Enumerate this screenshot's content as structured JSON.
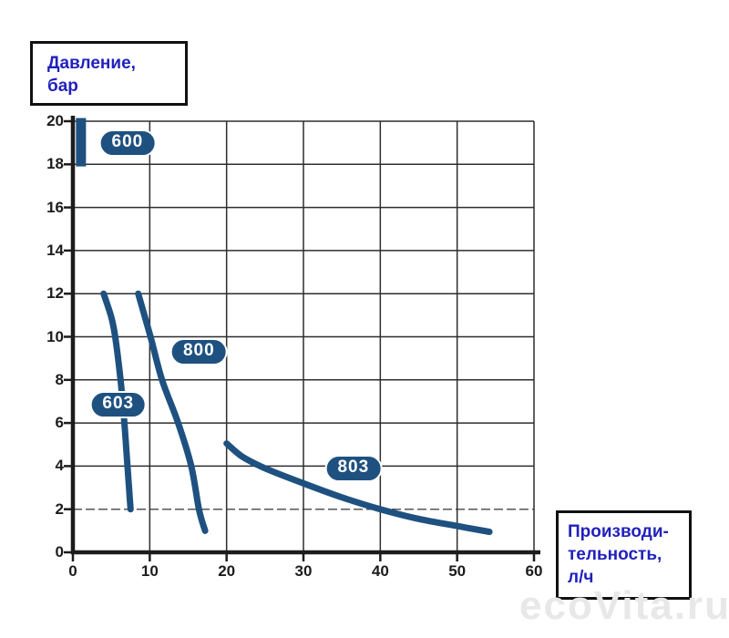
{
  "pressure_box": {
    "line1": "Давление,",
    "line2": "бар"
  },
  "productivity_box": {
    "line1": "Производи-",
    "line2": "тельность,",
    "line3": "л/ч"
  },
  "watermark": "ecoVita.ru",
  "colors": {
    "curve": "#1e5180",
    "badge_bg": "#1e5180",
    "badge_text": "#ffffff",
    "axis_label_blue": "#2121bd",
    "axis": "#1c1c1c",
    "grid": "#2e2e2e",
    "grid_dashed": "#555555",
    "watermark": "#e8e8e8"
  },
  "chart_data": {
    "type": "line",
    "title": "Давление, бар",
    "xlabel": "Производительность, л/ч",
    "ylabel": "Давление, бар",
    "x_axis": {
      "range": [
        0,
        60
      ],
      "ticks": [
        0,
        10,
        20,
        30,
        40,
        50,
        60
      ]
    },
    "y_axis": {
      "range": [
        0,
        20
      ],
      "ticks": [
        0,
        2,
        4,
        6,
        8,
        10,
        12,
        14,
        16,
        18,
        20
      ]
    },
    "grid": "on",
    "grid_dashed_at_y": 2,
    "series": [
      {
        "name": "600",
        "points": [
          [
            1.05,
            17.9
          ],
          [
            1.05,
            20.15
          ]
        ],
        "stroke_width": 11,
        "cap": "butt",
        "badge": {
          "x": 7.1,
          "y": 19.0
        }
      },
      {
        "name": "603",
        "points": [
          [
            4.0,
            12
          ],
          [
            5.0,
            10.9
          ],
          [
            5.5,
            10
          ],
          [
            6.2,
            8
          ],
          [
            6.7,
            6
          ],
          [
            7.1,
            4
          ],
          [
            7.3,
            3
          ],
          [
            7.5,
            2
          ]
        ],
        "stroke_width": 7,
        "cap": "round",
        "badge": {
          "x": 5.9,
          "y": 6.85
        }
      },
      {
        "name": "800",
        "points": [
          [
            8.5,
            12
          ],
          [
            10.1,
            10
          ],
          [
            11.6,
            8
          ],
          [
            13.7,
            6
          ],
          [
            15.4,
            4
          ],
          [
            16.4,
            2
          ],
          [
            17.2,
            1
          ]
        ],
        "stroke_width": 7,
        "cap": "round",
        "badge": {
          "x": 16.4,
          "y": 9.3
        }
      },
      {
        "name": "803",
        "points": [
          [
            20,
            5.05
          ],
          [
            22,
            4.45
          ],
          [
            25,
            3.9
          ],
          [
            30,
            3.2
          ],
          [
            35,
            2.55
          ],
          [
            40,
            2.0
          ],
          [
            45,
            1.55
          ],
          [
            50,
            1.22
          ],
          [
            54.2,
            0.95
          ]
        ],
        "stroke_width": 7,
        "cap": "round",
        "badge": {
          "x": 36.5,
          "y": 3.9
        }
      }
    ]
  }
}
